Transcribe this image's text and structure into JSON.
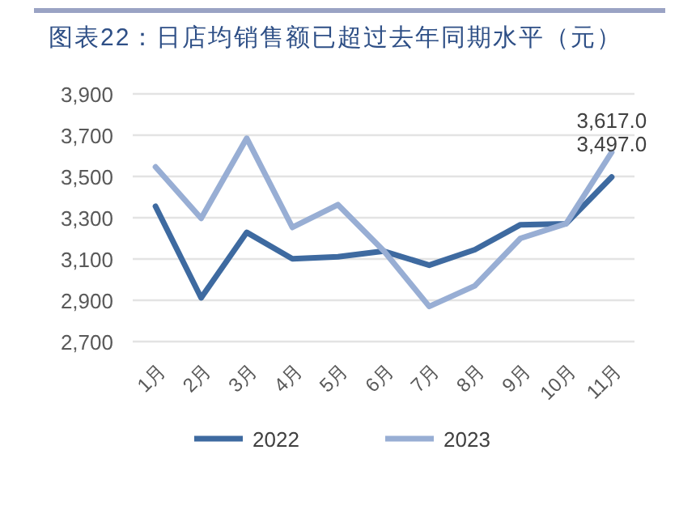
{
  "chart_data": {
    "type": "line",
    "title": "图表22：日店均销售额已超过去年同期水平（元）",
    "categories": [
      "1月",
      "2月",
      "3月",
      "4月",
      "5月",
      "6月",
      "7月",
      "8月",
      "9月",
      "10月",
      "11月"
    ],
    "series": [
      {
        "name": "2022",
        "color": "#3e6aa0",
        "values": [
          3355,
          2912,
          3229,
          3101,
          3111,
          3138,
          3070,
          3145,
          3266,
          3271,
          3497
        ],
        "value_labels": [
          null,
          null,
          null,
          null,
          null,
          null,
          null,
          null,
          null,
          null,
          "3,497.0"
        ]
      },
      {
        "name": "2023",
        "color": "#98aed4",
        "values": [
          3546,
          3297,
          3685,
          3253,
          3363,
          3140,
          2870,
          2970,
          3200,
          3271,
          3617
        ],
        "value_labels": [
          null,
          null,
          null,
          null,
          null,
          null,
          null,
          null,
          null,
          null,
          "3,617.0"
        ]
      }
    ],
    "ylim": [
      2700,
      3900
    ],
    "yticks": [
      {
        "value": 2700,
        "label": "2,700"
      },
      {
        "value": 2900,
        "label": "2,900"
      },
      {
        "value": 3100,
        "label": "3,100"
      },
      {
        "value": 3300,
        "label": "3,300"
      },
      {
        "value": 3500,
        "label": "3,500"
      },
      {
        "value": 3700,
        "label": "3,700"
      },
      {
        "value": 3900,
        "label": "3,900"
      }
    ],
    "grid": "y",
    "legend": "bottom",
    "marker": "none",
    "line_style": "solid"
  }
}
